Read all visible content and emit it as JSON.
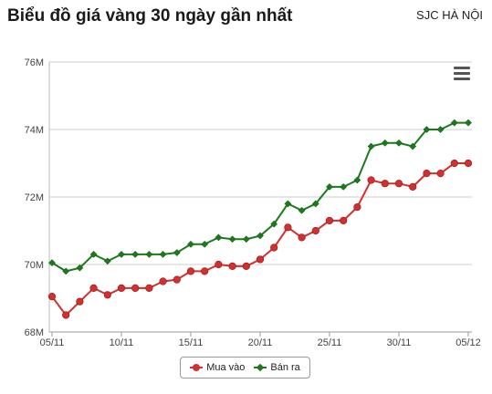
{
  "header": {
    "title": "Biểu đồ giá vàng 30 ngày gần nhất",
    "subtitle": "SJC HÀ NỘI"
  },
  "menu": {
    "icon": "hamburger-menu-icon"
  },
  "legend": {
    "items": [
      {
        "label": "Mua vào",
        "color": "#d32f2f",
        "marker": "circle"
      },
      {
        "label": "Bán ra",
        "color": "#1b7a1b",
        "marker": "diamond"
      }
    ]
  },
  "chart_data": {
    "type": "line",
    "ylim": [
      68,
      76
    ],
    "y_ticks": [
      "68M",
      "70M",
      "72M",
      "74M",
      "76M"
    ],
    "y_tick_values": [
      68,
      70,
      72,
      74,
      76
    ],
    "x_ticks": [
      "05/11",
      "10/11",
      "15/11",
      "20/11",
      "25/11",
      "30/11",
      "05/12"
    ],
    "x_tick_values": [
      0,
      5,
      10,
      15,
      20,
      25,
      30
    ],
    "grid": true,
    "legend_position": "bottom-center",
    "x": [
      0,
      1,
      2,
      3,
      4,
      5,
      6,
      7,
      8,
      9,
      10,
      11,
      12,
      13,
      14,
      15,
      16,
      17,
      18,
      19,
      20,
      21,
      22,
      23,
      24,
      25,
      26,
      27,
      28,
      29,
      30
    ],
    "series": [
      {
        "name": "Mua vào",
        "color": "#d32f2f",
        "marker": "circle",
        "values": [
          69.05,
          68.5,
          68.9,
          69.3,
          69.1,
          69.3,
          69.3,
          69.3,
          69.5,
          69.55,
          69.8,
          69.8,
          70.0,
          69.95,
          69.95,
          70.15,
          70.5,
          71.1,
          70.8,
          71.0,
          71.3,
          71.3,
          71.7,
          72.5,
          72.4,
          72.4,
          72.3,
          72.7,
          72.7,
          73.0,
          73.0
        ]
      },
      {
        "name": "Bán ra",
        "color": "#1b7a1b",
        "marker": "diamond",
        "values": [
          70.05,
          69.8,
          69.9,
          70.3,
          70.1,
          70.3,
          70.3,
          70.3,
          70.3,
          70.35,
          70.6,
          70.6,
          70.8,
          70.75,
          70.75,
          70.85,
          71.2,
          71.8,
          71.6,
          71.8,
          72.3,
          72.3,
          72.5,
          73.5,
          73.6,
          73.6,
          73.5,
          74.0,
          74.0,
          74.2,
          74.2
        ]
      }
    ]
  }
}
